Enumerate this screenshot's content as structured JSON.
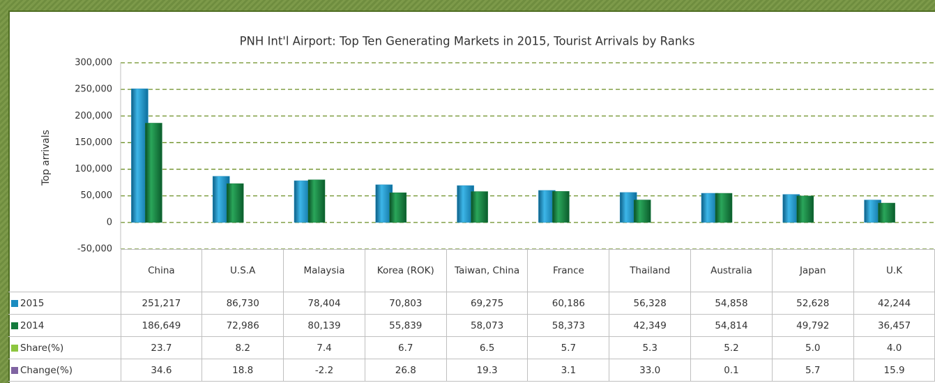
{
  "chart_data": {
    "type": "bar",
    "title": "PNH Int'l Airport: Top Ten Generating Markets in 2015, Tourist Arrivals by Ranks",
    "y_label": "Top arrivals",
    "categories": [
      "China",
      "U.S.A",
      "Malaysia",
      "Korea (ROK)",
      "Taiwan, China",
      "France",
      "Thailand",
      "Australia",
      "Japan",
      "U.K"
    ],
    "series": [
      {
        "name": "2015",
        "color": "#1b8cc0",
        "values": [
          251217,
          86730,
          78404,
          70803,
          69275,
          60186,
          56328,
          54858,
          52628,
          42244
        ],
        "value_labels": [
          "251,217",
          "86,730",
          "78,404",
          "70,803",
          "69,275",
          "60,186",
          "56,328",
          "54,858",
          "52,628",
          "42,244"
        ]
      },
      {
        "name": "2014",
        "color": "#137a3c",
        "values": [
          186649,
          72986,
          80139,
          55839,
          58073,
          58373,
          42349,
          54814,
          49792,
          36457
        ],
        "value_labels": [
          "186,649",
          "72,986",
          "80,139",
          "55,839",
          "58,073",
          "58,373",
          "42,349",
          "54,814",
          "49,792",
          "36,457"
        ]
      }
    ],
    "table_rows": [
      {
        "name": "Share(%)",
        "color": "#8dc63f",
        "values": [
          "23.7",
          "8.2",
          "7.4",
          "6.7",
          "6.5",
          "5.7",
          "5.3",
          "5.2",
          "5.0",
          "4.0"
        ]
      },
      {
        "name": "Change(%)",
        "color": "#8064a2",
        "values": [
          "34.6",
          "18.8",
          "-2.2",
          "26.8",
          "19.3",
          "3.1",
          "33.0",
          "0.1",
          "5.7",
          "15.9"
        ]
      }
    ],
    "ylim": [
      -50000,
      300000
    ],
    "yticks": [
      {
        "value": -50000,
        "label": "-50,000"
      },
      0,
      {
        "value": 50000,
        "label": "50,000"
      },
      {
        "value": 100000,
        "label": "100,000"
      },
      {
        "value": 150000,
        "label": "150,000"
      },
      {
        "value": 200000,
        "label": "200,000"
      },
      {
        "value": 250000,
        "label": "250,000"
      },
      {
        "value": 300000,
        "label": "300,000"
      }
    ],
    "grid": true,
    "grid_color": "#6b8e23"
  }
}
